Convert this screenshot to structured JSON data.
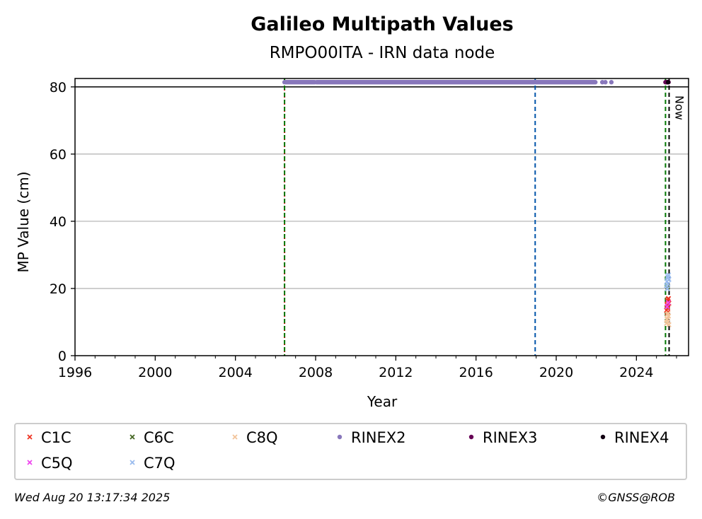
{
  "chart_data": {
    "type": "scatter",
    "title": "Galileo Multipath Values",
    "subtitle": "RMPO00ITA - IRN data node",
    "xlabel": "Year",
    "ylabel": "MP Value (cm)",
    "xlim": [
      1996,
      2026.6
    ],
    "ylim": [
      0,
      82.5
    ],
    "x_ticks": [
      1996,
      2000,
      2004,
      2008,
      2012,
      2016,
      2020,
      2024
    ],
    "y_ticks": [
      0,
      20,
      40,
      60,
      80
    ],
    "grid": "y",
    "cap_line_value": 80,
    "now_label": "Now",
    "vertical_lines": [
      {
        "x": 2006.45,
        "color": "#cc0000",
        "style": "dotted"
      },
      {
        "x": 2006.45,
        "color": "#007700",
        "style": "dashed"
      },
      {
        "x": 2018.95,
        "color": "#0055aa",
        "style": "dashed"
      },
      {
        "x": 2025.45,
        "color": "#007700",
        "style": "dashed"
      },
      {
        "x": 2025.63,
        "color": "#000000",
        "style": "dashed"
      }
    ],
    "series": [
      {
        "name": "C1C",
        "marker": "x",
        "color": "#ee3322",
        "points": [
          [
            2025.5,
            13.5
          ],
          [
            2025.52,
            15.2
          ],
          [
            2025.55,
            16.4
          ],
          [
            2025.57,
            14.1
          ],
          [
            2025.6,
            17.0
          ],
          [
            2025.62,
            15.6
          ],
          [
            2025.54,
            12.8
          ],
          [
            2025.58,
            16.9
          ]
        ]
      },
      {
        "name": "C5Q",
        "marker": "x",
        "color": "#ee44ee",
        "points": [
          [
            2025.53,
            14.6
          ],
          [
            2025.59,
            15.8
          ]
        ]
      },
      {
        "name": "C6C",
        "marker": "x",
        "color": "#446622",
        "points": [
          [
            2025.56,
            20.4
          ]
        ]
      },
      {
        "name": "C7Q",
        "marker": "x",
        "color": "#99bbee",
        "points": [
          [
            2025.5,
            20.8
          ],
          [
            2025.52,
            22.1
          ],
          [
            2025.55,
            23.6
          ],
          [
            2025.57,
            21.4
          ],
          [
            2025.6,
            24.0
          ],
          [
            2025.62,
            22.7
          ],
          [
            2025.54,
            19.9
          ],
          [
            2025.58,
            23.2
          ]
        ]
      },
      {
        "name": "C8Q",
        "marker": "x",
        "color": "#f2c49a",
        "points": [
          [
            2025.5,
            9.6
          ],
          [
            2025.52,
            11.0
          ],
          [
            2025.55,
            12.3
          ],
          [
            2025.57,
            10.2
          ],
          [
            2025.6,
            11.8
          ],
          [
            2025.62,
            9.2
          ],
          [
            2025.54,
            10.8
          ],
          [
            2025.58,
            12.6
          ]
        ]
      },
      {
        "name": "RINEX2",
        "marker": "dot",
        "color": "#8877bb",
        "segments": [
          [
            2006.45,
            2007.95
          ],
          [
            2008.05,
            2021.95
          ]
        ],
        "points": [
          [
            2022.3,
            81.4
          ],
          [
            2022.45,
            81.4
          ],
          [
            2022.75,
            81.4
          ]
        ]
      },
      {
        "name": "RINEX3",
        "marker": "dot",
        "color": "#660055",
        "points": [
          [
            2025.45,
            81.4
          ],
          [
            2025.5,
            81.4
          ],
          [
            2025.55,
            81.4
          ],
          [
            2025.6,
            81.4
          ]
        ]
      },
      {
        "name": "RINEX4",
        "marker": "dot",
        "color": "#110011",
        "points": [
          [
            2025.58,
            81.4
          ]
        ]
      }
    ],
    "legend": {
      "placement": "bottom",
      "items": [
        {
          "label": "C1C",
          "marker": "x",
          "color": "#ee3322"
        },
        {
          "label": "C6C",
          "marker": "x",
          "color": "#446622"
        },
        {
          "label": "C8Q",
          "marker": "x",
          "color": "#f2c49a"
        },
        {
          "label": "RINEX2",
          "marker": "dot",
          "color": "#8877bb"
        },
        {
          "label": "RINEX3",
          "marker": "dot",
          "color": "#660055"
        },
        {
          "label": "RINEX4",
          "marker": "dot",
          "color": "#110011"
        },
        {
          "label": "C5Q",
          "marker": "x",
          "color": "#ee44ee"
        },
        {
          "label": "C7Q",
          "marker": "x",
          "color": "#99bbee"
        }
      ]
    }
  },
  "footer": {
    "timestamp": "Wed Aug 20 13:17:34 2025",
    "copyright": "©GNSS@ROB"
  }
}
